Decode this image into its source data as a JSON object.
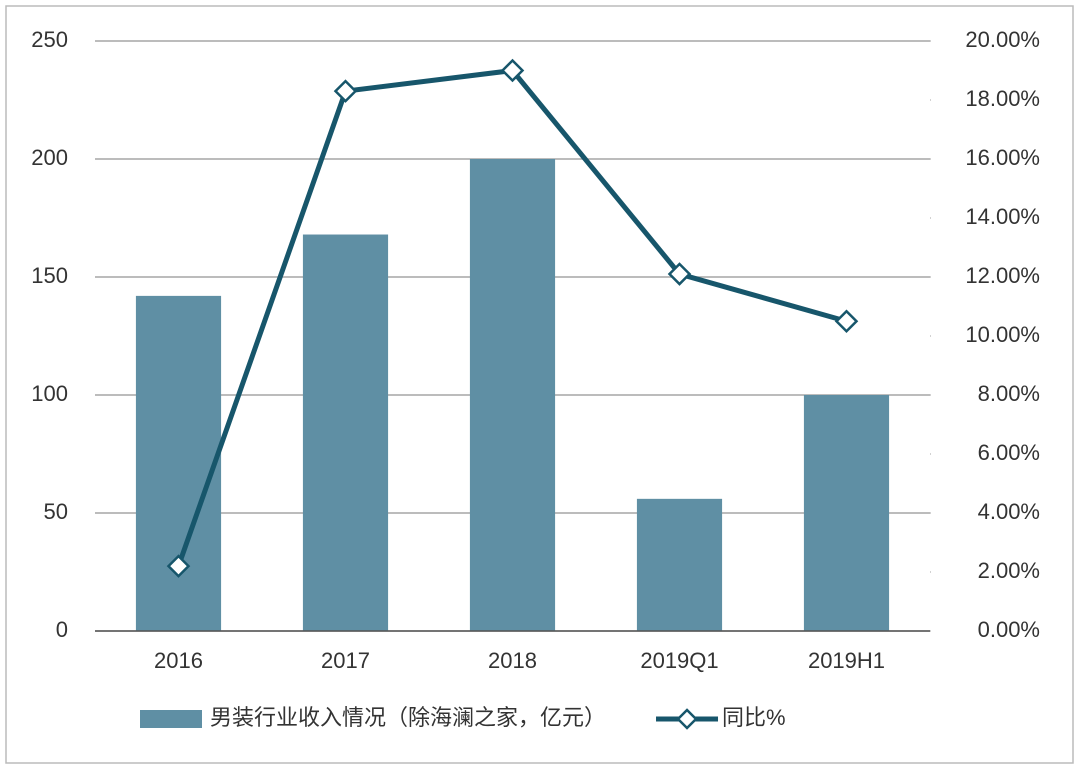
{
  "chart_data": {
    "type": "bar",
    "categories": [
      "2016",
      "2017",
      "2018",
      "2019Q1",
      "2019H1"
    ],
    "series": [
      {
        "name": "男装行业收入情况（除海澜之家，亿元）",
        "type": "bar",
        "color": "#5f8fa4",
        "values": [
          142,
          168,
          200,
          56,
          100
        ]
      },
      {
        "name": "同比%",
        "type": "line",
        "axis": "y2",
        "color": "#17566b",
        "values": [
          2.2,
          18.3,
          19.0,
          12.1,
          10.5
        ]
      }
    ],
    "ylim": [
      0,
      250
    ],
    "yticks": [
      0,
      50,
      100,
      150,
      200,
      250
    ],
    "y2lim": [
      0,
      20
    ],
    "y2ticks": [
      {
        "value": 0,
        "label": "0.00%"
      },
      {
        "value": 2,
        "label": "2.00%"
      },
      {
        "value": 4,
        "label": "4.00%"
      },
      {
        "value": 6,
        "label": "6.00%"
      },
      {
        "value": 8,
        "label": "8.00%"
      },
      {
        "value": 10,
        "label": "10.00%"
      },
      {
        "value": 12,
        "label": "12.00%"
      },
      {
        "value": 14,
        "label": "14.00%"
      },
      {
        "value": 16,
        "label": "16.00%"
      },
      {
        "value": 18,
        "label": "18.00%"
      },
      {
        "value": 20,
        "label": "20.00%"
      }
    ],
    "grid": true,
    "legend": "bottom"
  }
}
